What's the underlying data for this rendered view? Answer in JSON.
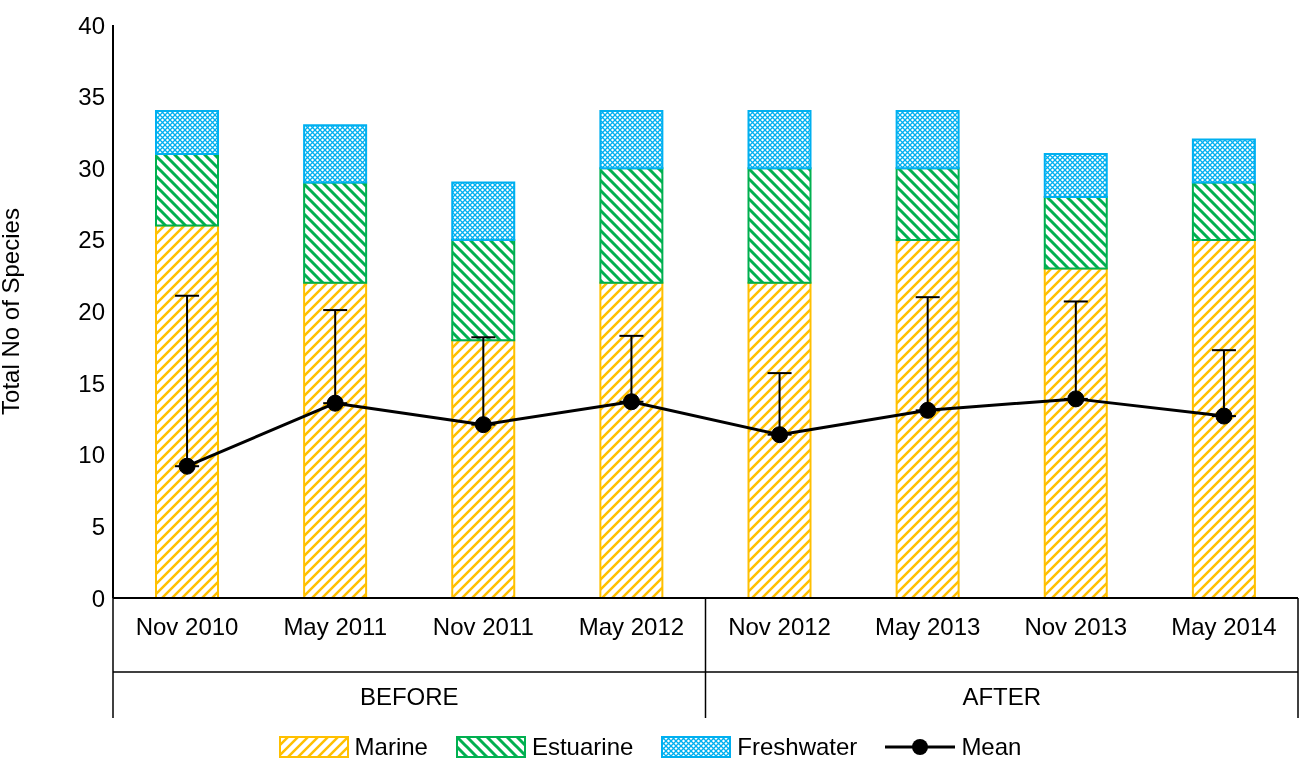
{
  "chart_data": {
    "type": "bar",
    "stacked": true,
    "ylabel": "Total No of Species",
    "categories": [
      "Nov 2010",
      "May 2011",
      "Nov 2011",
      "May 2012",
      "Nov 2012",
      "May 2013",
      "Nov 2013",
      "May 2014"
    ],
    "series": [
      {
        "name": "Marine",
        "color": "#ffc000",
        "values": [
          26,
          22,
          18,
          22,
          22,
          25,
          23,
          25
        ]
      },
      {
        "name": "Estuarine",
        "color": "#00b050",
        "values": [
          5,
          7,
          7,
          8,
          8,
          5,
          5,
          4
        ]
      },
      {
        "name": "Freshwater",
        "color": "#00b0f0",
        "values": [
          3,
          4,
          4,
          4,
          4,
          4,
          3,
          3
        ]
      },
      {
        "name": "Mean",
        "type": "line",
        "color": "#000000",
        "marker": "circle",
        "values": [
          9.2,
          13.6,
          12.1,
          13.7,
          11.4,
          13.1,
          13.9,
          12.7
        ],
        "errors": [
          [
            9.2,
            21.1
          ],
          [
            13.6,
            20.1
          ],
          [
            12.1,
            18.2
          ],
          [
            13.7,
            18.3
          ],
          [
            11.4,
            15.7
          ],
          [
            13.1,
            21.0
          ],
          [
            13.9,
            20.7
          ],
          [
            12.7,
            17.3
          ]
        ]
      }
    ],
    "annotations": [
      "BEFORE",
      "AFTER"
    ],
    "ylim": [
      0,
      40
    ],
    "yticks": [
      0,
      5,
      10,
      15,
      20,
      25,
      30,
      35,
      40
    ],
    "grid": false,
    "legend": "bottom"
  }
}
